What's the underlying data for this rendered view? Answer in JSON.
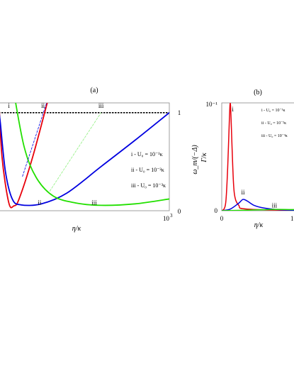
{
  "chart_data": [
    {
      "panel": "(a)",
      "type": "line",
      "xlabel": "η/κ",
      "ylabel_right": "ω_m/(−Δ)",
      "x_tick_labels": [
        "10",
        "3"
      ],
      "y_tick_labels_right": [
        "1",
        "0"
      ],
      "xlim": [
        0,
        1000
      ],
      "ylim": [
        0,
        1.1
      ],
      "reference_line": {
        "y": 1.0,
        "style": "dashed",
        "color": "#000000"
      },
      "series": [
        {
          "name": "i",
          "color": "#e8000b",
          "style": "solid",
          "points": [
            [
              0,
              1.2
            ],
            [
              20,
              0.55
            ],
            [
              60,
              0.08
            ],
            [
              90,
              0.05
            ],
            [
              120,
              0.12
            ],
            [
              200,
              0.55
            ],
            [
              300,
              1.2
            ]
          ]
        },
        {
          "name": "ii",
          "color": "#0000e0",
          "style": "solid",
          "points": [
            [
              0,
              1.05
            ],
            [
              10,
              0.9
            ],
            [
              40,
              0.4
            ],
            [
              80,
              0.12
            ],
            [
              130,
              0.06
            ],
            [
              250,
              0.07
            ],
            [
              400,
              0.18
            ],
            [
              600,
              0.45
            ],
            [
              800,
              0.72
            ],
            [
              1000,
              1.0
            ]
          ]
        },
        {
          "name": "iii",
          "color": "#22e000",
          "style": "solid",
          "points": [
            [
              90,
              1.2
            ],
            [
              150,
              0.65
            ],
            [
              220,
              0.34
            ],
            [
              320,
              0.15
            ],
            [
              450,
              0.08
            ],
            [
              600,
              0.055
            ],
            [
              800,
              0.07
            ],
            [
              1000,
              0.12
            ]
          ]
        },
        {
          "name": "i dashed",
          "color": "#0000e0",
          "style": "dashed",
          "points": [
            [
              140,
              0.35
            ],
            [
              300,
              1.2
            ]
          ]
        },
        {
          "name": "iii dashed",
          "color": "#90f080",
          "style": "dashed",
          "points": [
            [
              300,
              0.2
            ],
            [
              600,
              1.0
            ]
          ]
        }
      ],
      "curve_labels": [
        {
          "text": "i",
          "x": 60,
          "y": 1.05
        },
        {
          "text": "ii",
          "x": 260,
          "y": 1.05
        },
        {
          "text": "iii",
          "x": 600,
          "y": 1.05
        },
        {
          "text": "ii",
          "x": 240,
          "y": 0.06
        },
        {
          "text": "iii",
          "x": 560,
          "y": 0.06
        }
      ],
      "legend": [
        {
          "id": "i",
          "text": "i -  U₀ = 10⁻¹κ"
        },
        {
          "id": "ii",
          "text": "ii -  U₀ = 10⁻²κ"
        },
        {
          "id": "iii",
          "text": "iii - U₀ = 10⁻³κ"
        }
      ]
    },
    {
      "panel": "(b)",
      "type": "line",
      "xlabel": "η/κ",
      "ylabel": "Γ/κ",
      "y_tick_labels": [
        "10⁻¹",
        "0"
      ],
      "x_tick_labels": [
        "0",
        "1"
      ],
      "xlim": [
        0,
        100
      ],
      "ylim": [
        0,
        0.1
      ],
      "series": [
        {
          "name": "i",
          "color": "#e8000b",
          "points": [
            [
              0,
              0.0
            ],
            [
              3,
              0.002
            ],
            [
              5,
              0.01
            ],
            [
              7,
              0.04
            ],
            [
              9,
              0.085
            ],
            [
              10,
              0.1
            ],
            [
              11,
              0.085
            ],
            [
              13,
              0.04
            ],
            [
              15,
              0.015
            ],
            [
              20,
              0.005
            ],
            [
              30,
              0.0015
            ],
            [
              100,
              0.0
            ]
          ]
        },
        {
          "name": "ii",
          "color": "#0000e0",
          "points": [
            [
              0,
              0.0
            ],
            [
              10,
              0.0015
            ],
            [
              20,
              0.007
            ],
            [
              25,
              0.0105
            ],
            [
              30,
              0.009
            ],
            [
              38,
              0.005
            ],
            [
              50,
              0.0025
            ],
            [
              70,
              0.0008
            ],
            [
              100,
              0.0003
            ]
          ]
        },
        {
          "name": "iii",
          "color": "#22e000",
          "points": [
            [
              0,
              0.0
            ],
            [
              30,
              0.0005
            ],
            [
              60,
              0.0012
            ],
            [
              80,
              0.0011
            ],
            [
              100,
              0.0009
            ]
          ]
        }
      ],
      "curve_labels": [
        {
          "text": "i",
          "x": 13,
          "y": 0.092
        },
        {
          "text": "ii",
          "x": 25,
          "y": 0.015
        },
        {
          "text": "iii",
          "x": 62,
          "y": 0.003
        }
      ],
      "legend": [
        {
          "id": "i",
          "text": "i -  U₀ = 10⁻¹κ"
        },
        {
          "id": "ii",
          "text": "ii -  U₀ = 10⁻²κ"
        },
        {
          "id": "iii",
          "text": "iii - U₀ = 10⁻³κ"
        }
      ]
    }
  ]
}
